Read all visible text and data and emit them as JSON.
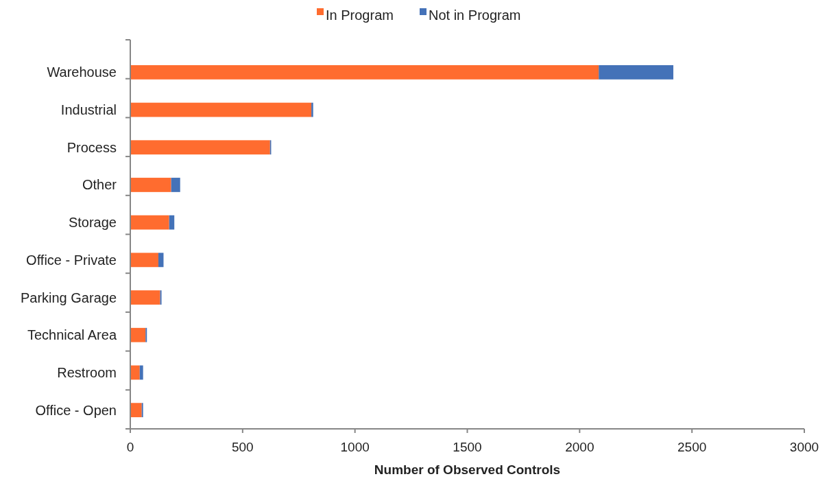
{
  "chart_data": {
    "type": "bar",
    "orientation": "horizontal",
    "stacked": true,
    "xlabel": "Number of Observed Controls",
    "categories": [
      "Warehouse",
      "Industrial",
      "Process",
      "Other",
      "Storage",
      "Office - Private",
      "Parking Garage",
      "Technical Area",
      "Restroom",
      "Office - Open"
    ],
    "series": [
      {
        "name": "In Program",
        "color": "#ff6c2f",
        "values": [
          2085,
          806,
          622,
          182,
          173,
          125,
          133,
          68,
          42,
          51
        ]
      },
      {
        "name": "Not in Program",
        "color": "#4472b8",
        "values": [
          332,
          8,
          5,
          40,
          23,
          23,
          6,
          6,
          15,
          6
        ]
      }
    ],
    "xlim": [
      0,
      3000
    ],
    "xticks": [
      0,
      500,
      1000,
      1500,
      2000,
      2500,
      3000
    ],
    "grid": false,
    "legend": "top"
  }
}
